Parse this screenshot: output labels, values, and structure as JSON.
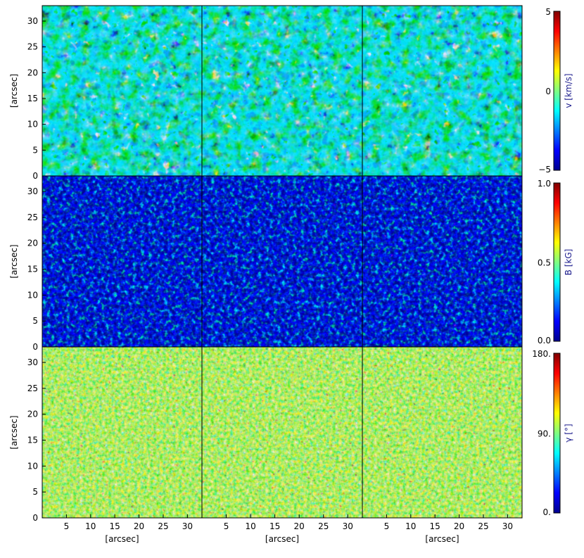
{
  "figure": {
    "rows": [
      {
        "id": "velocity",
        "quantity": "v",
        "colorbar": {
          "label": "v [km/s]",
          "range": [
            -5,
            5
          ],
          "ticks": [
            "5",
            "0",
            "−5"
          ]
        },
        "style": "granulation"
      },
      {
        "id": "field-strength",
        "quantity": "B",
        "colorbar": {
          "label": "B [kG]",
          "range": [
            0.0,
            1.0
          ],
          "ticks": [
            "1.0",
            "0.5",
            "0.0"
          ]
        },
        "style": "magnetic"
      },
      {
        "id": "inclination",
        "quantity": "gamma",
        "colorbar": {
          "label": "γ [°]",
          "range": [
            0,
            180
          ],
          "ticks": [
            "180.",
            "90.",
            "0."
          ]
        },
        "style": "inclination"
      }
    ],
    "columns": 3,
    "y_axis_label": "[arcsec]",
    "x_axis_label": "[arcsec]",
    "y_ticks": [
      "0",
      "5",
      "10",
      "15",
      "20",
      "25",
      "30"
    ],
    "x_ticks": [
      "5",
      "10",
      "15",
      "20",
      "25",
      "30"
    ],
    "axis_range_arcsec": [
      0,
      33
    ],
    "colormap": [
      "#00008f",
      "#0000ff",
      "#0080ff",
      "#00ffff",
      "#80ff80",
      "#ffff00",
      "#ff8000",
      "#ff0000",
      "#800000"
    ]
  },
  "chart_data": {
    "type": "heatmap",
    "layout": "3x3 grid of maps",
    "x": {
      "label": "[arcsec]",
      "range": [
        0,
        33
      ],
      "ticks": [
        5,
        10,
        15,
        20,
        25,
        30
      ]
    },
    "y": {
      "label": "[arcsec]",
      "range": [
        0,
        33
      ],
      "ticks": [
        0,
        5,
        10,
        15,
        20,
        25,
        30
      ]
    },
    "rows": [
      {
        "quantity": "v",
        "unit": "km/s",
        "color_range": [
          -5,
          5
        ]
      },
      {
        "quantity": "B",
        "unit": "kG",
        "color_range": [
          0.0,
          1.0
        ]
      },
      {
        "quantity": "γ",
        "unit": "°",
        "color_range": [
          0,
          180
        ]
      }
    ]
  }
}
